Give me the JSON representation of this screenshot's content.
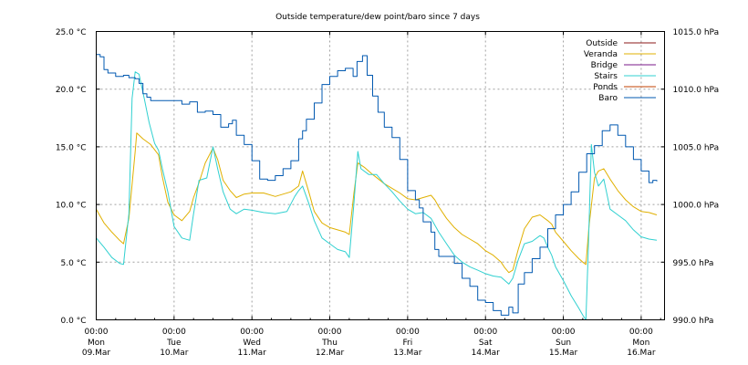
{
  "chart_data": {
    "type": "line",
    "title": "Outside temperature/dew point/baro since 7 days",
    "left_axis": {
      "unit": "°C",
      "ylim": [
        0.0,
        25.0
      ],
      "ticks": [
        0.0,
        5.0,
        10.0,
        15.0,
        20.0,
        25.0
      ],
      "tick_labels": [
        "0.0 °C",
        "5.0 °C",
        "10.0 °C",
        "15.0 °C",
        "20.0 °C",
        "25.0 °C"
      ]
    },
    "right_axis": {
      "unit": "hPa",
      "ylim": [
        990.0,
        1015.0
      ],
      "ticks": [
        990.0,
        995.0,
        1000.0,
        1005.0,
        1010.0,
        1015.0
      ],
      "tick_labels": [
        "990.0 hPa",
        "995.0 hPa",
        "1000.0 hPa",
        "1005.0 hPa",
        "1010.0 hPa",
        "1015.0 hPa"
      ]
    },
    "x_axis": {
      "unit": "days since Mon 09.Mar 00:00",
      "xlim": [
        0.0,
        7.3
      ],
      "ticks": [
        {
          "x": 0,
          "time": "00:00",
          "day": "Mon",
          "date": "09.Mar"
        },
        {
          "x": 1,
          "time": "00:00",
          "day": "Tue",
          "date": "10.Mar"
        },
        {
          "x": 2,
          "time": "00:00",
          "day": "Wed",
          "date": "11.Mar"
        },
        {
          "x": 3,
          "time": "00:00",
          "day": "Thu",
          "date": "12.Mar"
        },
        {
          "x": 4,
          "time": "00:00",
          "day": "Fri",
          "date": "13.Mar"
        },
        {
          "x": 5,
          "time": "00:00",
          "day": "Sat",
          "date": "14.Mar"
        },
        {
          "x": 6,
          "time": "00:00",
          "day": "Sun",
          "date": "15.Mar"
        },
        {
          "x": 7,
          "time": "00:00",
          "day": "Mon",
          "date": "16.Mar"
        }
      ]
    },
    "grid": true,
    "legend_position": "top-right",
    "series": [
      {
        "name": "Outside",
        "color": "#8b1a1a",
        "axis": "left",
        "points": []
      },
      {
        "name": "Veranda",
        "color": "#e0b000",
        "axis": "left",
        "points": [
          [
            0.0,
            9.6
          ],
          [
            0.1,
            8.4
          ],
          [
            0.2,
            7.6
          ],
          [
            0.3,
            6.9
          ],
          [
            0.35,
            6.6
          ],
          [
            0.42,
            8.8
          ],
          [
            0.5,
            14.6
          ],
          [
            0.52,
            16.2
          ],
          [
            0.6,
            15.7
          ],
          [
            0.7,
            15.2
          ],
          [
            0.8,
            14.3
          ],
          [
            0.85,
            12.4
          ],
          [
            0.92,
            10.2
          ],
          [
            1.0,
            9.1
          ],
          [
            1.1,
            8.6
          ],
          [
            1.2,
            9.4
          ],
          [
            1.25,
            10.6
          ],
          [
            1.32,
            11.9
          ],
          [
            1.4,
            13.6
          ],
          [
            1.5,
            14.9
          ],
          [
            1.56,
            13.9
          ],
          [
            1.63,
            12.1
          ],
          [
            1.72,
            11.2
          ],
          [
            1.8,
            10.6
          ],
          [
            1.9,
            10.9
          ],
          [
            2.0,
            11.0
          ],
          [
            2.15,
            11.0
          ],
          [
            2.3,
            10.7
          ],
          [
            2.5,
            11.1
          ],
          [
            2.6,
            11.6
          ],
          [
            2.65,
            12.9
          ],
          [
            2.73,
            11.1
          ],
          [
            2.8,
            9.4
          ],
          [
            2.9,
            8.4
          ],
          [
            3.0,
            8.0
          ],
          [
            3.1,
            7.8
          ],
          [
            3.2,
            7.6
          ],
          [
            3.25,
            7.4
          ],
          [
            3.31,
            11.0
          ],
          [
            3.36,
            13.6
          ],
          [
            3.45,
            13.2
          ],
          [
            3.55,
            12.6
          ],
          [
            3.7,
            11.8
          ],
          [
            3.8,
            11.4
          ],
          [
            3.9,
            11.0
          ],
          [
            4.0,
            10.5
          ],
          [
            4.1,
            10.4
          ],
          [
            4.2,
            10.6
          ],
          [
            4.3,
            10.8
          ],
          [
            4.35,
            10.4
          ],
          [
            4.4,
            9.8
          ],
          [
            4.5,
            8.8
          ],
          [
            4.6,
            8.0
          ],
          [
            4.7,
            7.4
          ],
          [
            4.8,
            7.0
          ],
          [
            4.9,
            6.6
          ],
          [
            5.0,
            6.0
          ],
          [
            5.1,
            5.6
          ],
          [
            5.2,
            5.0
          ],
          [
            5.25,
            4.5
          ],
          [
            5.3,
            4.1
          ],
          [
            5.35,
            4.3
          ],
          [
            5.42,
            6.1
          ],
          [
            5.5,
            7.9
          ],
          [
            5.6,
            8.9
          ],
          [
            5.7,
            9.1
          ],
          [
            5.8,
            8.6
          ],
          [
            5.85,
            8.3
          ],
          [
            5.9,
            7.6
          ],
          [
            6.0,
            6.8
          ],
          [
            6.1,
            6.0
          ],
          [
            6.2,
            5.3
          ],
          [
            6.25,
            5.0
          ],
          [
            6.29,
            4.8
          ],
          [
            6.33,
            8.1
          ],
          [
            6.4,
            12.3
          ],
          [
            6.45,
            12.9
          ],
          [
            6.52,
            13.1
          ],
          [
            6.6,
            12.2
          ],
          [
            6.7,
            11.2
          ],
          [
            6.8,
            10.4
          ],
          [
            6.9,
            9.8
          ],
          [
            7.0,
            9.4
          ],
          [
            7.1,
            9.3
          ],
          [
            7.2,
            9.1
          ]
        ]
      },
      {
        "name": "Bridge",
        "color": "#7a1a8a",
        "axis": "left",
        "points": []
      },
      {
        "name": "Stairs",
        "color": "#30d0d0",
        "axis": "left",
        "points": [
          [
            0.0,
            7.1
          ],
          [
            0.1,
            6.3
          ],
          [
            0.2,
            5.4
          ],
          [
            0.3,
            4.9
          ],
          [
            0.35,
            4.8
          ],
          [
            0.42,
            9.2
          ],
          [
            0.46,
            19.2
          ],
          [
            0.5,
            21.5
          ],
          [
            0.55,
            21.3
          ],
          [
            0.62,
            19.1
          ],
          [
            0.68,
            17.1
          ],
          [
            0.75,
            15.3
          ],
          [
            0.8,
            14.7
          ],
          [
            0.85,
            13.1
          ],
          [
            0.92,
            11.1
          ],
          [
            1.0,
            8.1
          ],
          [
            1.1,
            7.1
          ],
          [
            1.2,
            6.9
          ],
          [
            1.25,
            9.2
          ],
          [
            1.32,
            12.1
          ],
          [
            1.42,
            12.3
          ],
          [
            1.5,
            15.0
          ],
          [
            1.56,
            13.1
          ],
          [
            1.63,
            11.1
          ],
          [
            1.72,
            9.6
          ],
          [
            1.8,
            9.2
          ],
          [
            1.9,
            9.6
          ],
          [
            2.0,
            9.5
          ],
          [
            2.15,
            9.3
          ],
          [
            2.3,
            9.2
          ],
          [
            2.45,
            9.4
          ],
          [
            2.55,
            10.7
          ],
          [
            2.6,
            11.2
          ],
          [
            2.65,
            11.6
          ],
          [
            2.73,
            10.1
          ],
          [
            2.8,
            8.6
          ],
          [
            2.9,
            7.1
          ],
          [
            3.0,
            6.6
          ],
          [
            3.1,
            6.1
          ],
          [
            3.2,
            5.9
          ],
          [
            3.25,
            5.4
          ],
          [
            3.31,
            10.1
          ],
          [
            3.36,
            14.6
          ],
          [
            3.4,
            13.1
          ],
          [
            3.5,
            12.6
          ],
          [
            3.6,
            12.6
          ],
          [
            3.7,
            11.8
          ],
          [
            3.8,
            11.1
          ],
          [
            3.9,
            10.3
          ],
          [
            4.0,
            9.6
          ],
          [
            4.1,
            9.2
          ],
          [
            4.2,
            9.3
          ],
          [
            4.3,
            8.8
          ],
          [
            4.4,
            7.6
          ],
          [
            4.5,
            6.6
          ],
          [
            4.6,
            5.6
          ],
          [
            4.7,
            5.0
          ],
          [
            4.8,
            4.6
          ],
          [
            4.9,
            4.3
          ],
          [
            5.0,
            4.0
          ],
          [
            5.1,
            3.8
          ],
          [
            5.2,
            3.7
          ],
          [
            5.3,
            3.1
          ],
          [
            5.35,
            3.6
          ],
          [
            5.42,
            5.2
          ],
          [
            5.5,
            6.6
          ],
          [
            5.6,
            6.8
          ],
          [
            5.7,
            7.3
          ],
          [
            5.75,
            7.1
          ],
          [
            5.8,
            6.3
          ],
          [
            5.85,
            5.6
          ],
          [
            5.9,
            4.6
          ],
          [
            6.0,
            3.4
          ],
          [
            6.1,
            2.1
          ],
          [
            6.2,
            1.0
          ],
          [
            6.25,
            0.4
          ],
          [
            6.29,
            0.0
          ],
          [
            6.32,
            6.0
          ],
          [
            6.36,
            15.2
          ],
          [
            6.4,
            12.8
          ],
          [
            6.45,
            11.6
          ],
          [
            6.52,
            12.2
          ],
          [
            6.6,
            9.6
          ],
          [
            6.7,
            9.1
          ],
          [
            6.8,
            8.6
          ],
          [
            6.9,
            7.8
          ],
          [
            7.0,
            7.2
          ],
          [
            7.1,
            7.0
          ],
          [
            7.2,
            6.9
          ]
        ]
      },
      {
        "name": "Ponds",
        "color": "#c04000",
        "axis": "left",
        "points": []
      },
      {
        "name": "Baro",
        "color": "#0058b0",
        "axis": "right",
        "points": [
          [
            0.0,
            1013.0
          ],
          [
            0.05,
            1012.8
          ],
          [
            0.1,
            1011.7
          ],
          [
            0.15,
            1011.4
          ],
          [
            0.25,
            1011.1
          ],
          [
            0.35,
            1011.2
          ],
          [
            0.42,
            1011.0
          ],
          [
            0.5,
            1010.9
          ],
          [
            0.55,
            1010.5
          ],
          [
            0.6,
            1009.6
          ],
          [
            0.65,
            1009.3
          ],
          [
            0.7,
            1009.0
          ],
          [
            0.8,
            1009.0
          ],
          [
            0.9,
            1009.0
          ],
          [
            1.0,
            1009.0
          ],
          [
            1.1,
            1008.7
          ],
          [
            1.2,
            1008.9
          ],
          [
            1.3,
            1008.0
          ],
          [
            1.4,
            1008.1
          ],
          [
            1.5,
            1007.8
          ],
          [
            1.6,
            1006.7
          ],
          [
            1.7,
            1007.0
          ],
          [
            1.75,
            1007.3
          ],
          [
            1.8,
            1006.0
          ],
          [
            1.9,
            1005.2
          ],
          [
            2.0,
            1003.8
          ],
          [
            2.1,
            1002.2
          ],
          [
            2.2,
            1002.1
          ],
          [
            2.3,
            1002.5
          ],
          [
            2.4,
            1003.1
          ],
          [
            2.5,
            1003.8
          ],
          [
            2.6,
            1005.7
          ],
          [
            2.65,
            1006.4
          ],
          [
            2.7,
            1007.4
          ],
          [
            2.8,
            1008.8
          ],
          [
            2.9,
            1010.4
          ],
          [
            3.0,
            1011.1
          ],
          [
            3.1,
            1011.6
          ],
          [
            3.2,
            1011.8
          ],
          [
            3.3,
            1011.1
          ],
          [
            3.35,
            1012.4
          ],
          [
            3.42,
            1012.9
          ],
          [
            3.48,
            1011.2
          ],
          [
            3.55,
            1009.4
          ],
          [
            3.62,
            1008.0
          ],
          [
            3.7,
            1006.7
          ],
          [
            3.8,
            1005.8
          ],
          [
            3.9,
            1003.9
          ],
          [
            4.0,
            1001.2
          ],
          [
            4.1,
            1000.4
          ],
          [
            4.15,
            999.7
          ],
          [
            4.2,
            998.5
          ],
          [
            4.3,
            997.6
          ],
          [
            4.35,
            996.1
          ],
          [
            4.4,
            995.5
          ],
          [
            4.5,
            995.5
          ],
          [
            4.6,
            994.9
          ],
          [
            4.7,
            993.6
          ],
          [
            4.8,
            992.9
          ],
          [
            4.9,
            991.7
          ],
          [
            5.0,
            991.5
          ],
          [
            5.1,
            990.8
          ],
          [
            5.2,
            990.4
          ],
          [
            5.3,
            991.1
          ],
          [
            5.35,
            990.6
          ],
          [
            5.42,
            993.1
          ],
          [
            5.5,
            994.1
          ],
          [
            5.6,
            995.3
          ],
          [
            5.7,
            996.3
          ],
          [
            5.8,
            997.9
          ],
          [
            5.9,
            999.1
          ],
          [
            6.0,
            1000.0
          ],
          [
            6.1,
            1001.1
          ],
          [
            6.2,
            1002.8
          ],
          [
            6.3,
            1004.4
          ],
          [
            6.4,
            1005.1
          ],
          [
            6.5,
            1006.4
          ],
          [
            6.6,
            1006.9
          ],
          [
            6.7,
            1006.0
          ],
          [
            6.8,
            1005.0
          ],
          [
            6.9,
            1003.9
          ],
          [
            7.0,
            1002.9
          ],
          [
            7.1,
            1001.9
          ],
          [
            7.15,
            1002.1
          ],
          [
            7.2,
            1002.0
          ]
        ]
      }
    ]
  }
}
